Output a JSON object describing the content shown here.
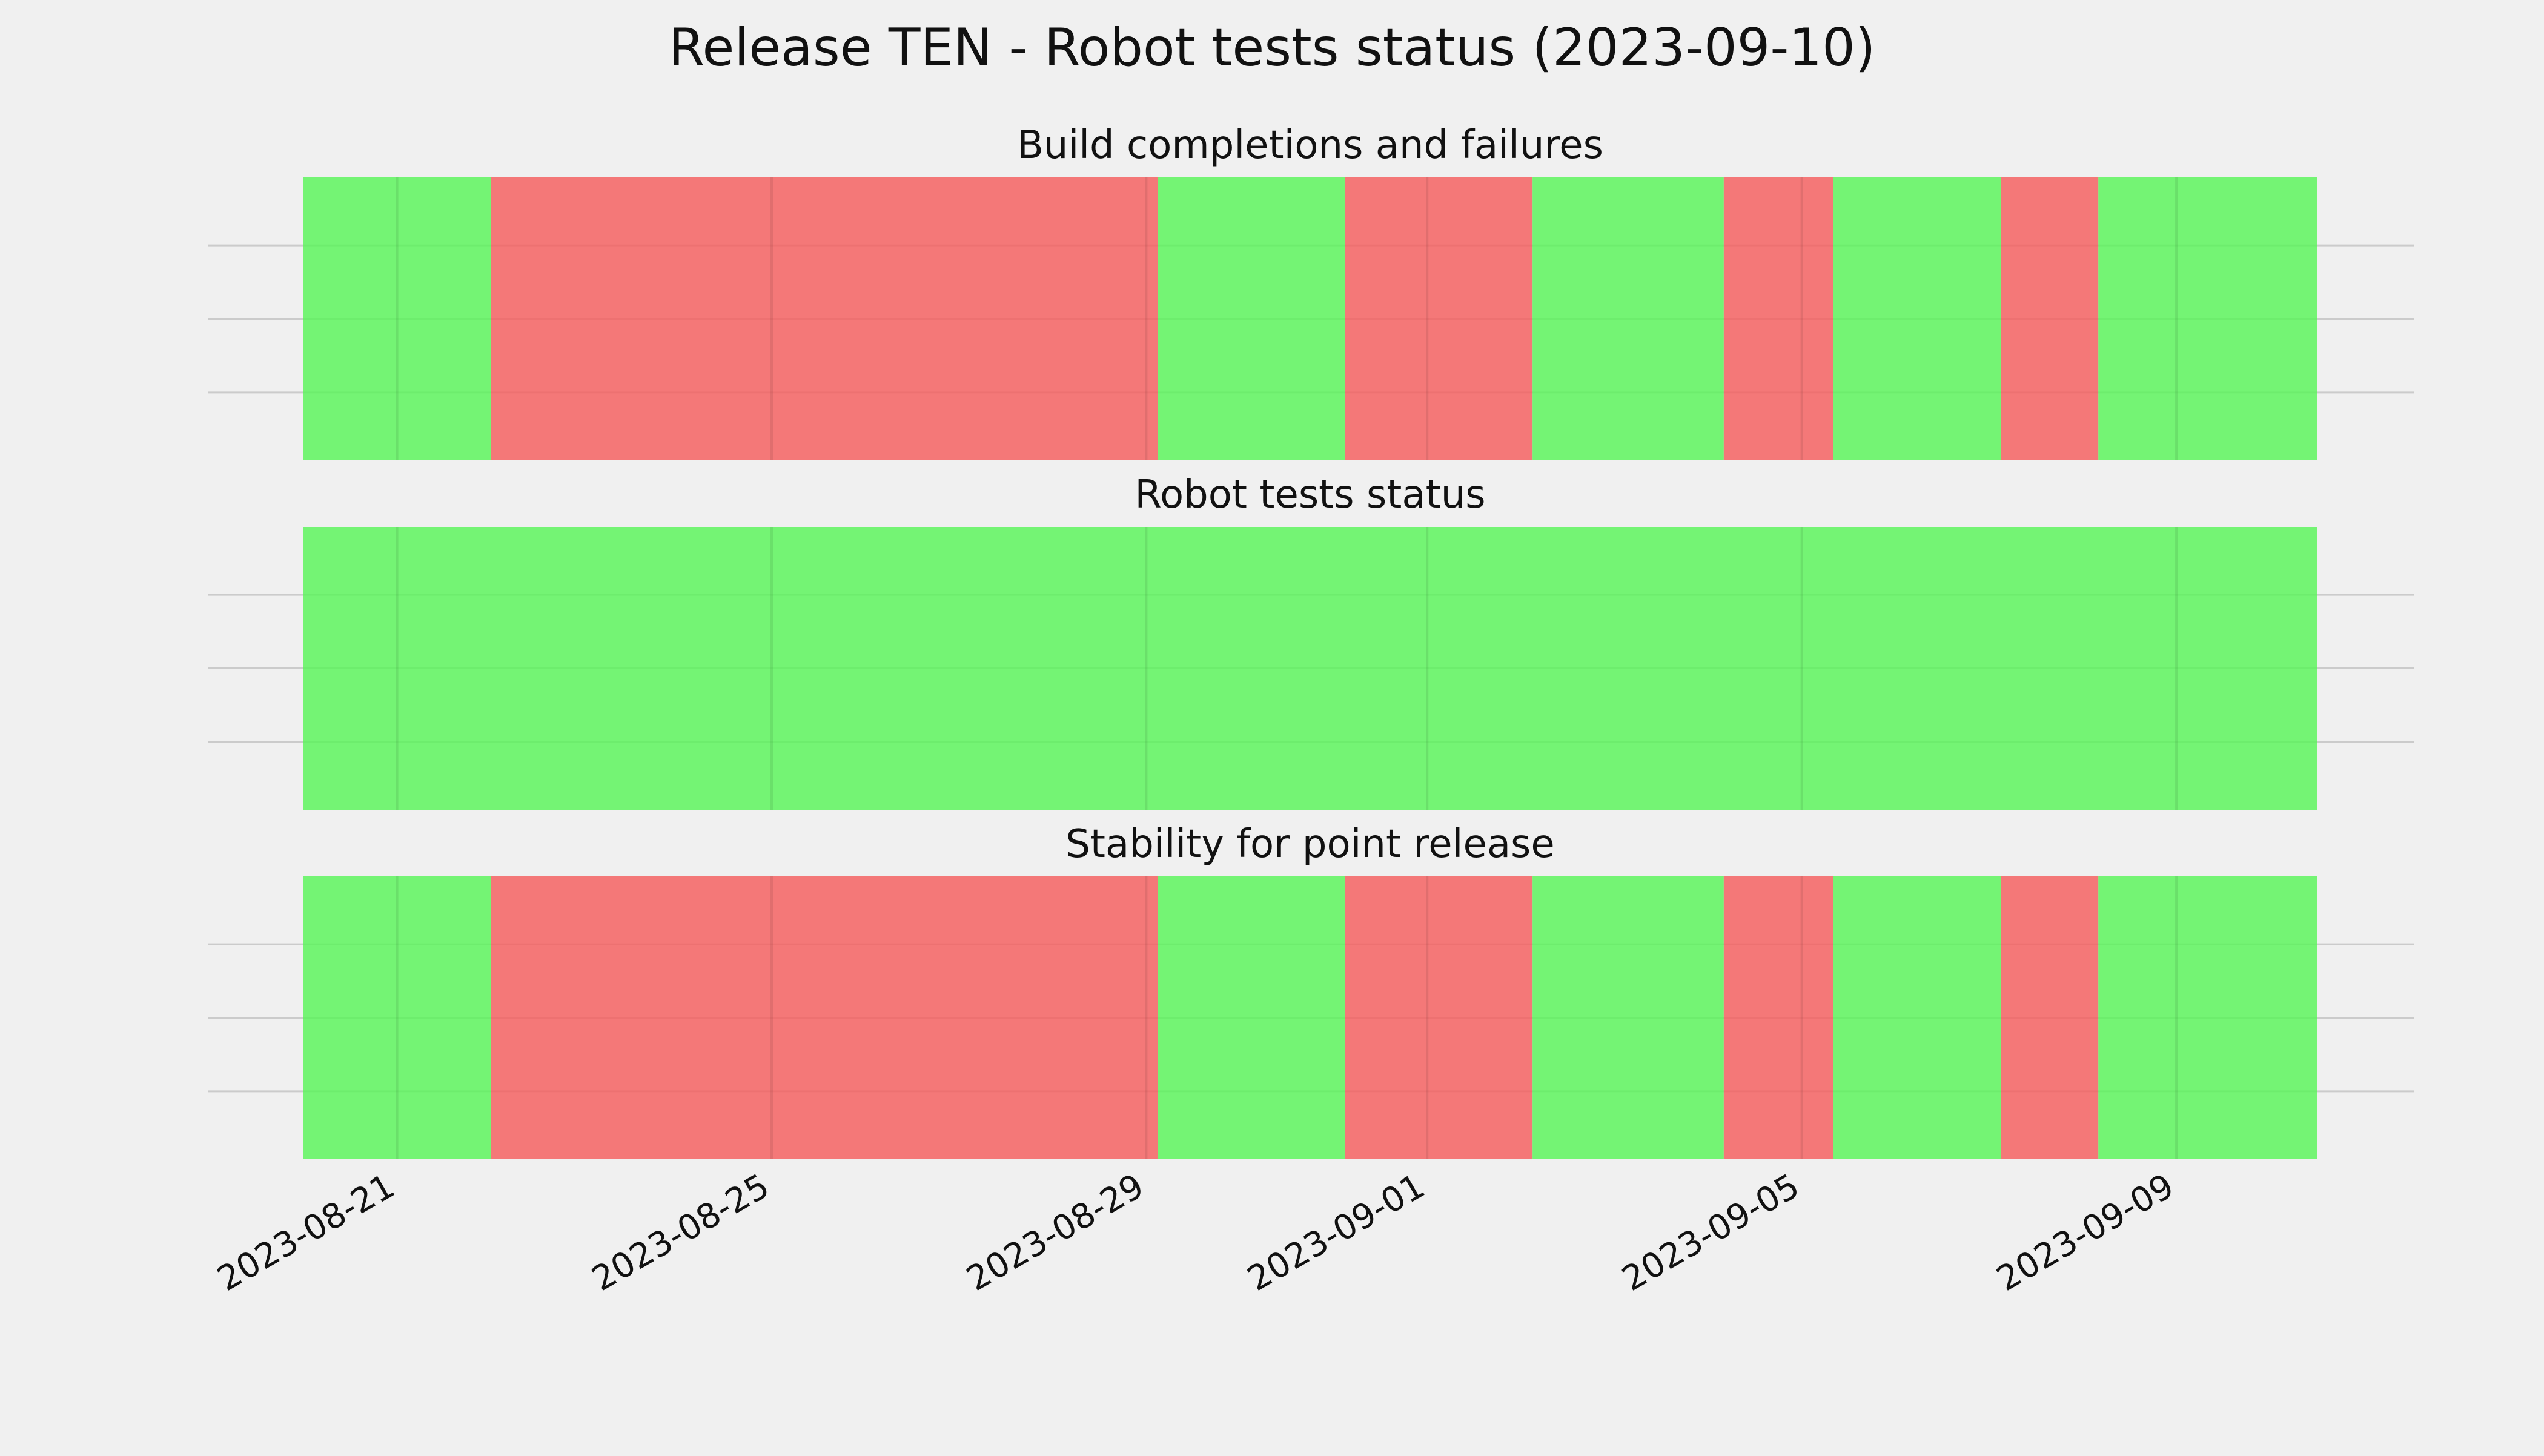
{
  "title": "Release TEN - Robot tests status (2023-09-10)",
  "colors": {
    "background": "#f0f0f0",
    "pass": "#55f555",
    "fail": "#f55a5a",
    "grid": "#cbcbcb",
    "text": "#111111"
  },
  "chart_data": {
    "type": "timeline",
    "x_axis": {
      "type": "date",
      "range": [
        "2023-08-19T00:00",
        "2023-09-11T00:00"
      ],
      "ticks": [
        "2023-08-21",
        "2023-08-25",
        "2023-08-29",
        "2023-09-01",
        "2023-09-05",
        "2023-09-09"
      ],
      "tick_label_rotation": "30 degrees"
    },
    "data_range": [
      "2023-08-20T00:00",
      "2023-09-10T12:00"
    ],
    "grid": true,
    "legend": "none",
    "panels": [
      {
        "title": "Build completions and failures",
        "segments": [
          {
            "start": "2023-08-20T00:00",
            "end": "2023-08-22T00:00",
            "status": "pass"
          },
          {
            "start": "2023-08-22T00:00",
            "end": "2023-08-29T03:00",
            "status": "fail"
          },
          {
            "start": "2023-08-29T03:00",
            "end": "2023-08-31T03:00",
            "status": "pass"
          },
          {
            "start": "2023-08-31T03:00",
            "end": "2023-09-02T03:00",
            "status": "fail"
          },
          {
            "start": "2023-09-02T03:00",
            "end": "2023-09-04T04:00",
            "status": "pass"
          },
          {
            "start": "2023-09-04T04:00",
            "end": "2023-09-05T08:00",
            "status": "fail"
          },
          {
            "start": "2023-09-05T08:00",
            "end": "2023-09-07T03:00",
            "status": "pass"
          },
          {
            "start": "2023-09-07T03:00",
            "end": "2023-09-08T04:00",
            "status": "fail"
          },
          {
            "start": "2023-09-08T04:00",
            "end": "2023-09-10T12:00",
            "status": "pass"
          }
        ]
      },
      {
        "title": "Robot tests status",
        "segments": [
          {
            "start": "2023-08-20T00:00",
            "end": "2023-09-10T12:00",
            "status": "pass"
          }
        ]
      },
      {
        "title": "Stability for point release",
        "segments": [
          {
            "start": "2023-08-20T00:00",
            "end": "2023-08-22T00:00",
            "status": "pass"
          },
          {
            "start": "2023-08-22T00:00",
            "end": "2023-08-29T03:00",
            "status": "fail"
          },
          {
            "start": "2023-08-29T03:00",
            "end": "2023-08-31T03:00",
            "status": "pass"
          },
          {
            "start": "2023-08-31T03:00",
            "end": "2023-09-02T03:00",
            "status": "fail"
          },
          {
            "start": "2023-09-02T03:00",
            "end": "2023-09-04T04:00",
            "status": "pass"
          },
          {
            "start": "2023-09-04T04:00",
            "end": "2023-09-05T08:00",
            "status": "fail"
          },
          {
            "start": "2023-09-05T08:00",
            "end": "2023-09-07T03:00",
            "status": "pass"
          },
          {
            "start": "2023-09-07T03:00",
            "end": "2023-09-08T04:00",
            "status": "fail"
          },
          {
            "start": "2023-09-08T04:00",
            "end": "2023-09-10T12:00",
            "status": "pass"
          }
        ]
      }
    ]
  }
}
